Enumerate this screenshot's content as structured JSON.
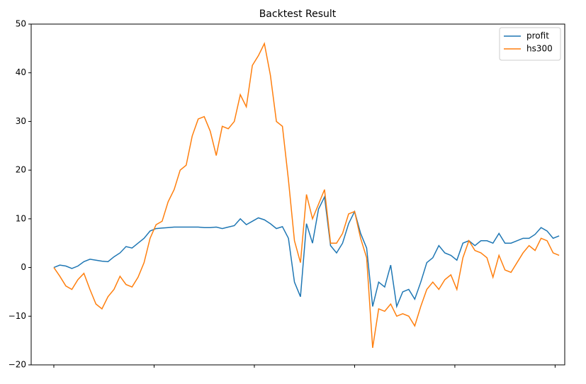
{
  "chart_data": {
    "type": "line",
    "title": "Backtest Result",
    "x": [
      0,
      3,
      6,
      9,
      12,
      15,
      18,
      21,
      24,
      27,
      30,
      33,
      36,
      39,
      42,
      45,
      48,
      51,
      54,
      57,
      60,
      63,
      66,
      69,
      72,
      75,
      78,
      81,
      84,
      87,
      90,
      93,
      96,
      99,
      102,
      105,
      108,
      111,
      114,
      117,
      120,
      123,
      126,
      129,
      132,
      135,
      138,
      141,
      144,
      147,
      150,
      153,
      156,
      159,
      162,
      165,
      168,
      171,
      174,
      177,
      180,
      183,
      186,
      189,
      192,
      195,
      198,
      201,
      204,
      207,
      210,
      213,
      216,
      219,
      222,
      225,
      228,
      231,
      234,
      237,
      240,
      243,
      246,
      249,
      252
    ],
    "series": [
      {
        "name": "profit",
        "color": "#1f77b4",
        "values": [
          0,
          0.5,
          0.3,
          -0.2,
          0.3,
          1.2,
          1.7,
          1.5,
          1.3,
          1.2,
          2.2,
          3.0,
          4.3,
          4.0,
          5.0,
          6.0,
          7.5,
          8.0,
          8.1,
          8.2,
          8.3,
          8.3,
          8.3,
          8.3,
          8.3,
          8.2,
          8.2,
          8.3,
          8.0,
          8.3,
          8.6,
          10.0,
          8.8,
          9.5,
          10.2,
          9.8,
          9.0,
          8.0,
          8.4,
          6.0,
          -3.0,
          -6.0,
          9.0,
          5.0,
          12.0,
          14.5,
          4.5,
          3.0,
          5.0,
          9.0,
          11.5,
          7.0,
          4.0,
          -8.0,
          -3.0,
          -4.0,
          0.5,
          -8.0,
          -5.0,
          -4.5,
          -6.5,
          -3.0,
          1.0,
          2.0,
          4.5,
          3.0,
          2.5,
          1.5,
          5.0,
          5.5,
          4.5,
          5.5,
          5.5,
          5.0,
          7.0,
          5.0,
          5.0,
          5.5,
          6.0,
          6.0,
          6.8,
          8.2,
          7.5,
          6.0,
          6.5
        ]
      },
      {
        "name": "hs300",
        "color": "#ff7f0e",
        "values": [
          0,
          -1.8,
          -3.8,
          -4.5,
          -2.5,
          -1.2,
          -4.5,
          -7.5,
          -8.5,
          -6,
          -4.5,
          -1.8,
          -3.5,
          -4,
          -2,
          1,
          6,
          8.8,
          9.5,
          13.5,
          16,
          20,
          21,
          27,
          30.5,
          31,
          28,
          23,
          29,
          28.5,
          30,
          35.5,
          33,
          41.5,
          43.5,
          46,
          39.5,
          30,
          29,
          18,
          5.5,
          1,
          15,
          10,
          13,
          16,
          5,
          5,
          7,
          11,
          11.5,
          6,
          2,
          -16.5,
          -8.5,
          -9,
          -7.5,
          -10,
          -9.5,
          -10,
          -12,
          -8,
          -4.5,
          -3,
          -4.5,
          -2.5,
          -1.5,
          -4.5,
          2,
          5.5,
          3.5,
          3,
          2,
          -2,
          2.5,
          -0.5,
          -1,
          1,
          3,
          4.5,
          3.5,
          6,
          5.5,
          3,
          2.5
        ]
      }
    ],
    "xlim": [
      -11.3,
      254.8
    ],
    "xticks": [
      0,
      50,
      100,
      150,
      200,
      250
    ],
    "ylim": [
      -20,
      50
    ],
    "yticks": [
      {
        "value": -20,
        "label": "−20"
      },
      {
        "value": -10,
        "label": "−10"
      },
      0,
      10,
      20,
      30,
      40,
      50
    ],
    "legend": "upper right"
  }
}
